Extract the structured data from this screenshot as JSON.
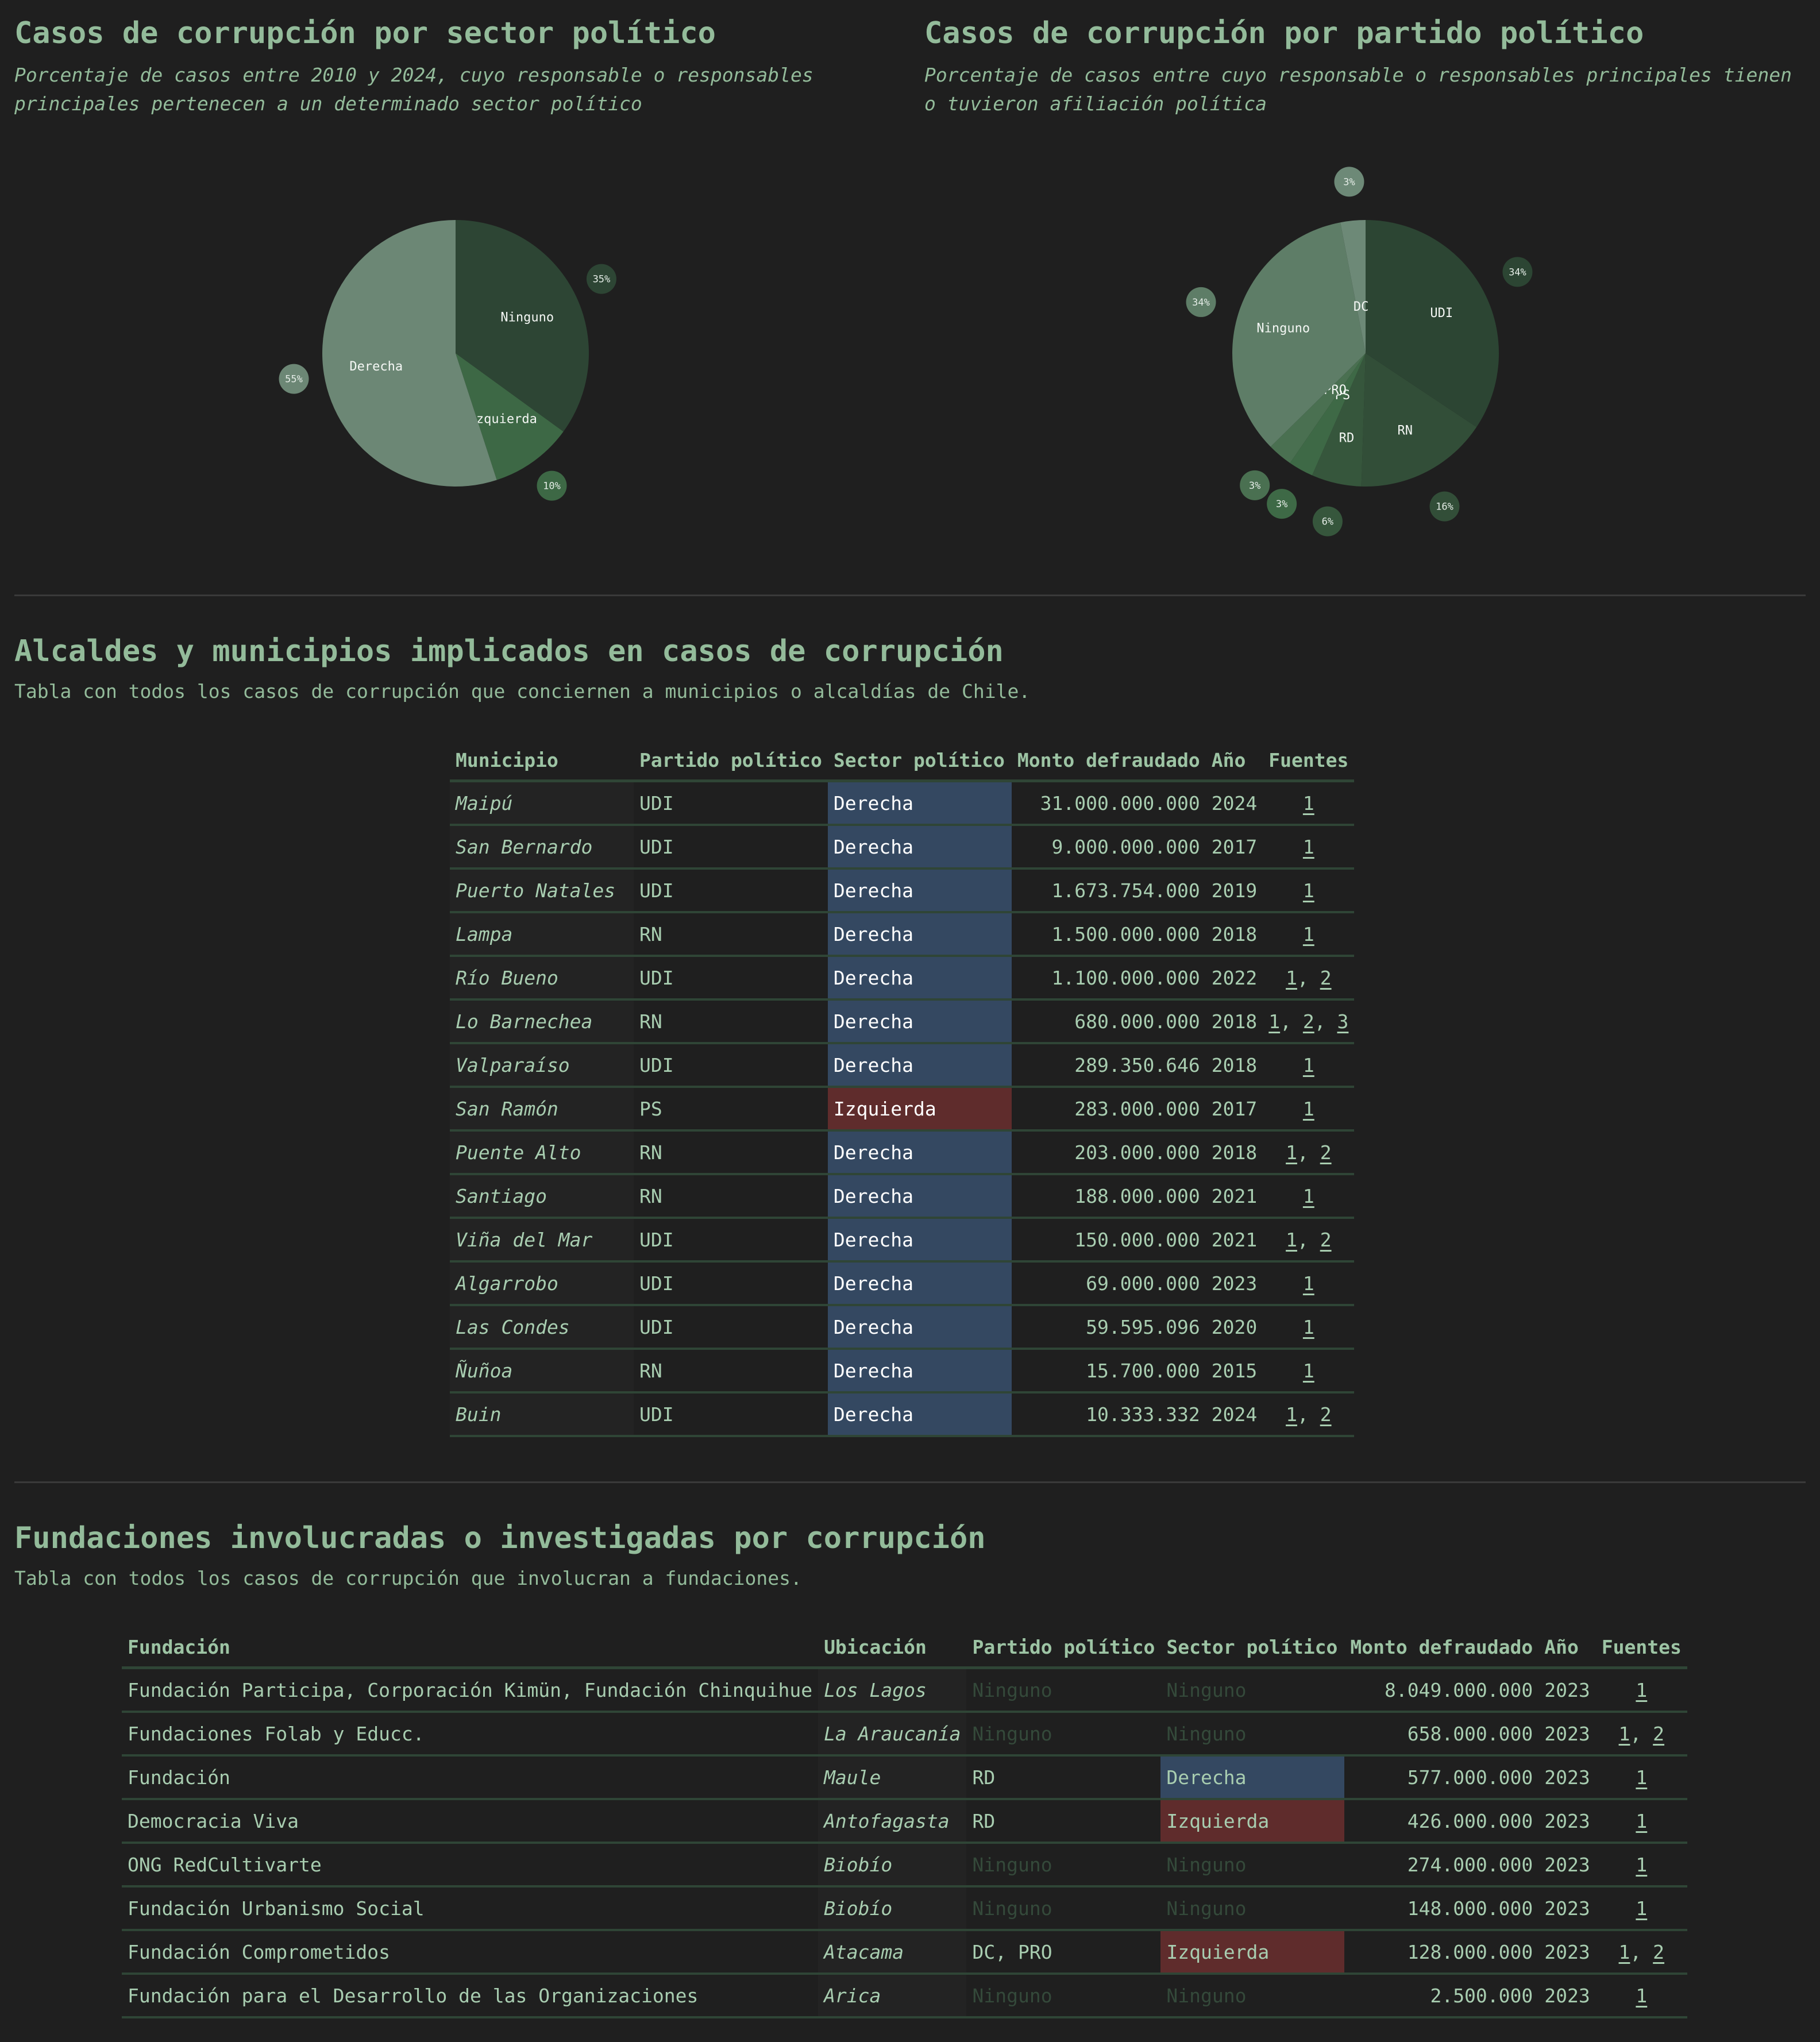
{
  "sections": {
    "sector_chart": {
      "title": "Casos de corrupción por sector político",
      "subtitle": "Porcentaje de casos entre 2010 y 2024, cuyo responsable o responsables principales pertenecen a un determinado sector político"
    },
    "party_chart": {
      "title": "Casos de corrupción por partido político",
      "subtitle": "Porcentaje de casos entre cuyo responsable o responsables principales tienen o tuvieron afiliación política"
    },
    "municipios": {
      "title": "Alcaldes y municipios implicados en casos de corrupción",
      "description": "Tabla con todos los casos de corrupción que conciernen a municipios o alcaldías de Chile."
    },
    "fundaciones": {
      "title": "Fundaciones involucradas o investigadas por corrupción",
      "description": "Tabla con todos los casos de corrupción que involucran a fundaciones."
    }
  },
  "colors": {
    "background": "#1f1f1f",
    "text": "#93bb9a",
    "derecha": "#344861",
    "izquierda": "#5f2c2c",
    "row_border": "#2f4536"
  },
  "chart_data": [
    {
      "type": "pie",
      "title": "Casos de corrupción por sector político",
      "subtitle": "Porcentaje de casos entre 2010 y 2024, cuyo responsable o responsables principales pertenecen a un determinado sector político",
      "categories": [
        "Ninguno",
        "Izquierda",
        "Derecha"
      ],
      "values": [
        35,
        10,
        55
      ],
      "labels": [
        "35%",
        "10%",
        "55%"
      ],
      "colors": [
        "#2d4534",
        "#3d6845",
        "#6c8775"
      ],
      "legend": "none (inline slice labels)"
    },
    {
      "type": "pie",
      "title": "Casos de corrupción por partido político",
      "subtitle": "Porcentaje de casos entre cuyo responsable o responsables principales tienen o tuvieron afiliación política",
      "categories": [
        "UDI",
        "RN",
        "RD",
        "PS",
        "PRO",
        "Ninguno",
        "DC"
      ],
      "values": [
        34,
        16,
        6,
        3,
        3,
        34,
        3
      ],
      "labels": [
        "34%",
        "16%",
        "6%",
        "3%",
        "3%",
        "34%",
        "3%"
      ],
      "colors": [
        "#2c4533",
        "#324e38",
        "#36563c",
        "#3e6946",
        "#4a7051",
        "#5e7d67",
        "#6d8977"
      ],
      "legend": "none (inline slice labels)"
    }
  ],
  "municipios_table": {
    "headers": [
      "Municipio",
      "Partido político",
      "Sector político",
      "Monto defraudado",
      "Año",
      "Fuentes"
    ],
    "rows": [
      {
        "municipio": "Maipú",
        "partido": "UDI",
        "sector": "Derecha",
        "monto": "31.000.000.000",
        "anio": "2024",
        "fuentes": [
          "1"
        ]
      },
      {
        "municipio": "San Bernardo",
        "partido": "UDI",
        "sector": "Derecha",
        "monto": "9.000.000.000",
        "anio": "2017",
        "fuentes": [
          "1"
        ]
      },
      {
        "municipio": "Puerto Natales",
        "partido": "UDI",
        "sector": "Derecha",
        "monto": "1.673.754.000",
        "anio": "2019",
        "fuentes": [
          "1"
        ]
      },
      {
        "municipio": "Lampa",
        "partido": "RN",
        "sector": "Derecha",
        "monto": "1.500.000.000",
        "anio": "2018",
        "fuentes": [
          "1"
        ]
      },
      {
        "municipio": "Río Bueno",
        "partido": "UDI",
        "sector": "Derecha",
        "monto": "1.100.000.000",
        "anio": "2022",
        "fuentes": [
          "1",
          "2"
        ]
      },
      {
        "municipio": "Lo Barnechea",
        "partido": "RN",
        "sector": "Derecha",
        "monto": "680.000.000",
        "anio": "2018",
        "fuentes": [
          "1",
          "2",
          "3"
        ]
      },
      {
        "municipio": "Valparaíso",
        "partido": "UDI",
        "sector": "Derecha",
        "monto": "289.350.646",
        "anio": "2018",
        "fuentes": [
          "1"
        ]
      },
      {
        "municipio": "San Ramón",
        "partido": "PS",
        "sector": "Izquierda",
        "monto": "283.000.000",
        "anio": "2017",
        "fuentes": [
          "1"
        ]
      },
      {
        "municipio": "Puente Alto",
        "partido": "RN",
        "sector": "Derecha",
        "monto": "203.000.000",
        "anio": "2018",
        "fuentes": [
          "1",
          "2"
        ]
      },
      {
        "municipio": "Santiago",
        "partido": "RN",
        "sector": "Derecha",
        "monto": "188.000.000",
        "anio": "2021",
        "fuentes": [
          "1"
        ]
      },
      {
        "municipio": "Viña del Mar",
        "partido": "UDI",
        "sector": "Derecha",
        "monto": "150.000.000",
        "anio": "2021",
        "fuentes": [
          "1",
          "2"
        ]
      },
      {
        "municipio": "Algarrobo",
        "partido": "UDI",
        "sector": "Derecha",
        "monto": "69.000.000",
        "anio": "2023",
        "fuentes": [
          "1"
        ]
      },
      {
        "municipio": "Las Condes",
        "partido": "UDI",
        "sector": "Derecha",
        "monto": "59.595.096",
        "anio": "2020",
        "fuentes": [
          "1"
        ]
      },
      {
        "municipio": "Ñuñoa",
        "partido": "RN",
        "sector": "Derecha",
        "monto": "15.700.000",
        "anio": "2015",
        "fuentes": [
          "1"
        ]
      },
      {
        "municipio": "Buin",
        "partido": "UDI",
        "sector": "Derecha",
        "monto": "10.333.332",
        "anio": "2024",
        "fuentes": [
          "1",
          "2"
        ]
      }
    ]
  },
  "fundaciones_table": {
    "headers": [
      "Fundación",
      "Ubicación",
      "Partido político",
      "Sector político",
      "Monto defraudado",
      "Año",
      "Fuentes"
    ],
    "rows": [
      {
        "fundacion": "Fundación Participa, Corporación Kimün, Fundación Chinquihue",
        "ubicacion": "Los Lagos",
        "partido": "Ninguno",
        "sector": "Ninguno",
        "monto": "8.049.000.000",
        "anio": "2023",
        "fuentes": [
          "1"
        ]
      },
      {
        "fundacion": "Fundaciones Folab y Educc.",
        "ubicacion": "La Araucanía",
        "partido": "Ninguno",
        "sector": "Ninguno",
        "monto": "658.000.000",
        "anio": "2023",
        "fuentes": [
          "1",
          "2"
        ]
      },
      {
        "fundacion": "Fundación",
        "ubicacion": "Maule",
        "partido": "RD",
        "sector": "Derecha",
        "monto": "577.000.000",
        "anio": "2023",
        "fuentes": [
          "1"
        ]
      },
      {
        "fundacion": "Democracia Viva",
        "ubicacion": "Antofagasta",
        "partido": "RD",
        "sector": "Izquierda",
        "monto": "426.000.000",
        "anio": "2023",
        "fuentes": [
          "1"
        ]
      },
      {
        "fundacion": "ONG RedCultivarte",
        "ubicacion": "Biobío",
        "partido": "Ninguno",
        "sector": "Ninguno",
        "monto": "274.000.000",
        "anio": "2023",
        "fuentes": [
          "1"
        ]
      },
      {
        "fundacion": "Fundación Urbanismo Social",
        "ubicacion": "Biobío",
        "partido": "Ninguno",
        "sector": "Ninguno",
        "monto": "148.000.000",
        "anio": "2023",
        "fuentes": [
          "1"
        ]
      },
      {
        "fundacion": "Fundación Comprometidos",
        "ubicacion": "Atacama",
        "partido": "DC, PRO",
        "sector": "Izquierda",
        "monto": "128.000.000",
        "anio": "2023",
        "fuentes": [
          "1",
          "2"
        ]
      },
      {
        "fundacion": "Fundación para el Desarrollo de las Organizaciones",
        "ubicacion": "Arica",
        "partido": "Ninguno",
        "sector": "Ninguno",
        "monto": "2.500.000",
        "anio": "2023",
        "fuentes": [
          "1"
        ]
      }
    ]
  }
}
